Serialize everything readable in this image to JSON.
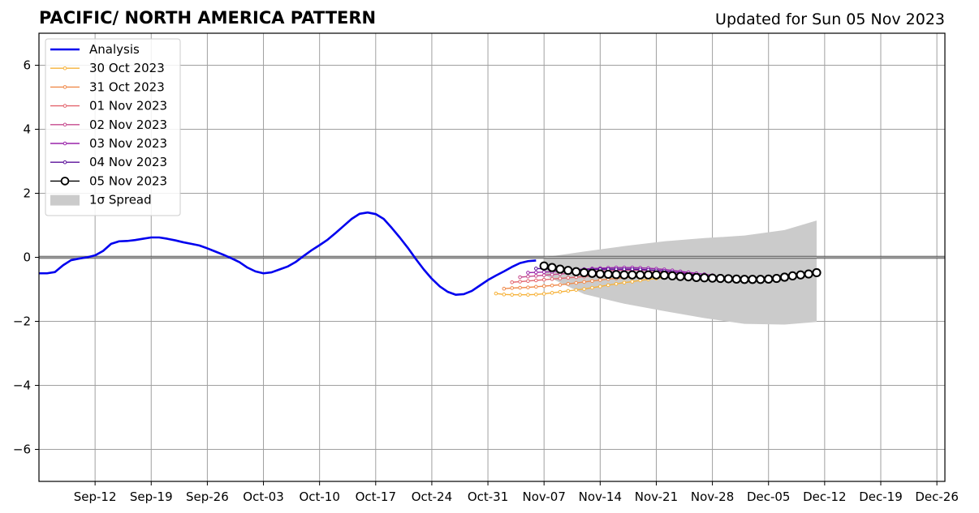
{
  "chart_data": {
    "type": "line",
    "title": "PACIFIC/ NORTH AMERICA PATTERN",
    "subtitle": "Updated for Sun 05 Nov 2023",
    "xlabel": "",
    "ylabel": "",
    "xlim": [
      "2023-09-04",
      "2023-12-26"
    ],
    "ylim": [
      -7,
      7
    ],
    "grid": true,
    "zero_line": true,
    "legend_position": "upper-left",
    "x_tick_labels": [
      "Sep-12",
      "Sep-19",
      "Sep-26",
      "Oct-03",
      "Oct-10",
      "Oct-17",
      "Oct-24",
      "Oct-31",
      "Nov-07",
      "Nov-14",
      "Nov-21",
      "Nov-28",
      "Dec-05",
      "Dec-12",
      "Dec-19",
      "Dec-26"
    ],
    "y_tick_labels": [
      "6",
      "4",
      "2",
      "0",
      "−2",
      "−4",
      "−6"
    ],
    "series": [
      {
        "name": "Analysis",
        "color": "#0000ee",
        "style": "thick-line",
        "x": [
          "2023-09-04",
          "2023-09-05",
          "2023-09-06",
          "2023-09-07",
          "2023-09-08",
          "2023-09-09",
          "2023-09-10",
          "2023-09-11",
          "2023-09-12",
          "2023-09-13",
          "2023-09-14",
          "2023-09-15",
          "2023-09-16",
          "2023-09-17",
          "2023-09-18",
          "2023-09-19",
          "2023-09-20",
          "2023-09-21",
          "2023-09-22",
          "2023-09-23",
          "2023-09-24",
          "2023-09-25",
          "2023-09-26",
          "2023-09-27",
          "2023-09-28",
          "2023-09-29",
          "2023-09-30",
          "2023-10-01",
          "2023-10-02",
          "2023-10-03",
          "2023-10-04",
          "2023-10-05",
          "2023-10-06",
          "2023-10-07",
          "2023-10-08",
          "2023-10-09",
          "2023-10-10",
          "2023-10-11",
          "2023-10-12",
          "2023-10-13",
          "2023-10-14",
          "2023-10-15",
          "2023-10-16",
          "2023-10-17",
          "2023-10-18",
          "2023-10-19",
          "2023-10-20",
          "2023-10-21",
          "2023-10-22",
          "2023-10-23",
          "2023-10-24",
          "2023-10-25",
          "2023-10-26",
          "2023-10-27",
          "2023-10-28",
          "2023-10-29",
          "2023-10-30",
          "2023-10-31",
          "2023-11-01",
          "2023-11-02",
          "2023-11-03",
          "2023-11-04",
          "2023-11-05"
        ],
        "values": [
          -0.5,
          -0.5,
          -0.46,
          -0.25,
          -0.09,
          -0.04,
          0.0,
          0.06,
          0.2,
          0.42,
          0.5,
          0.51,
          0.54,
          0.58,
          0.62,
          0.62,
          0.58,
          0.53,
          0.47,
          0.42,
          0.37,
          0.28,
          0.18,
          0.08,
          -0.03,
          -0.15,
          -0.32,
          -0.44,
          -0.5,
          -0.47,
          -0.38,
          -0.29,
          -0.15,
          0.04,
          0.22,
          0.38,
          0.55,
          0.76,
          0.98,
          1.2,
          1.36,
          1.4,
          1.35,
          1.2,
          0.92,
          0.62,
          0.3,
          -0.05,
          -0.38,
          -0.67,
          -0.91,
          -1.08,
          -1.17,
          -1.15,
          -1.05,
          -0.88,
          -0.71,
          -0.57,
          -0.44,
          -0.3,
          -0.18,
          -0.12,
          -0.1
        ]
      },
      {
        "name": "30 Oct 2023",
        "color": "#f6b23a",
        "style": "small-markers",
        "x": [
          "2023-10-31",
          "2023-11-01",
          "2023-11-02",
          "2023-11-03",
          "2023-11-04",
          "2023-11-05",
          "2023-11-06",
          "2023-11-07",
          "2023-11-08",
          "2023-11-09",
          "2023-11-10",
          "2023-11-11",
          "2023-11-12",
          "2023-11-13",
          "2023-11-14",
          "2023-11-15",
          "2023-11-16",
          "2023-11-17",
          "2023-11-18",
          "2023-11-19",
          "2023-11-20",
          "2023-11-21"
        ],
        "values": [
          -1.13,
          -1.16,
          -1.17,
          -1.17,
          -1.17,
          -1.16,
          -1.14,
          -1.11,
          -1.08,
          -1.05,
          -1.02,
          -0.99,
          -0.95,
          -0.91,
          -0.87,
          -0.83,
          -0.79,
          -0.76,
          -0.72,
          -0.69,
          -0.66,
          -0.63
        ]
      },
      {
        "name": "31 Oct 2023",
        "color": "#f08a4b",
        "style": "small-markers",
        "x": [
          "2023-11-01",
          "2023-11-02",
          "2023-11-03",
          "2023-11-04",
          "2023-11-05",
          "2023-11-06",
          "2023-11-07",
          "2023-11-08",
          "2023-11-09",
          "2023-11-10",
          "2023-11-11",
          "2023-11-12",
          "2023-11-13",
          "2023-11-14",
          "2023-11-15",
          "2023-11-16",
          "2023-11-17",
          "2023-11-18",
          "2023-11-19",
          "2023-11-20",
          "2023-11-21",
          "2023-11-22"
        ],
        "values": [
          -0.98,
          -0.96,
          -0.95,
          -0.94,
          -0.92,
          -0.9,
          -0.88,
          -0.86,
          -0.83,
          -0.8,
          -0.77,
          -0.74,
          -0.71,
          -0.68,
          -0.66,
          -0.64,
          -0.62,
          -0.6,
          -0.58,
          -0.57,
          -0.56,
          -0.55
        ]
      },
      {
        "name": "01 Nov 2023",
        "color": "#e3656e",
        "style": "small-markers",
        "x": [
          "2023-11-02",
          "2023-11-03",
          "2023-11-04",
          "2023-11-05",
          "2023-11-06",
          "2023-11-07",
          "2023-11-08",
          "2023-11-09",
          "2023-11-10",
          "2023-11-11",
          "2023-11-12",
          "2023-11-13",
          "2023-11-14",
          "2023-11-15",
          "2023-11-16",
          "2023-11-17",
          "2023-11-18",
          "2023-11-19",
          "2023-11-20",
          "2023-11-21",
          "2023-11-22",
          "2023-11-23"
        ],
        "values": [
          -0.78,
          -0.76,
          -0.74,
          -0.72,
          -0.7,
          -0.68,
          -0.66,
          -0.64,
          -0.62,
          -0.6,
          -0.58,
          -0.56,
          -0.54,
          -0.52,
          -0.5,
          -0.49,
          -0.48,
          -0.47,
          -0.47,
          -0.47,
          -0.48,
          -0.49
        ]
      },
      {
        "name": "02 Nov 2023",
        "color": "#c64a8e",
        "style": "small-markers",
        "x": [
          "2023-11-03",
          "2023-11-04",
          "2023-11-05",
          "2023-11-06",
          "2023-11-07",
          "2023-11-08",
          "2023-11-09",
          "2023-11-10",
          "2023-11-11",
          "2023-11-12",
          "2023-11-13",
          "2023-11-14",
          "2023-11-15",
          "2023-11-16",
          "2023-11-17",
          "2023-11-18",
          "2023-11-19",
          "2023-11-20",
          "2023-11-21",
          "2023-11-22",
          "2023-11-23",
          "2023-11-24",
          "2023-11-25"
        ],
        "values": [
          -0.62,
          -0.6,
          -0.58,
          -0.56,
          -0.54,
          -0.52,
          -0.5,
          -0.48,
          -0.46,
          -0.44,
          -0.43,
          -0.42,
          -0.41,
          -0.4,
          -0.4,
          -0.4,
          -0.41,
          -0.42,
          -0.44,
          -0.46,
          -0.48,
          -0.5,
          -0.53
        ]
      },
      {
        "name": "03 Nov 2023",
        "color": "#9a24aa",
        "style": "small-markers",
        "x": [
          "2023-11-04",
          "2023-11-05",
          "2023-11-06",
          "2023-11-07",
          "2023-11-08",
          "2023-11-09",
          "2023-11-10",
          "2023-11-11",
          "2023-11-12",
          "2023-11-13",
          "2023-11-14",
          "2023-11-15",
          "2023-11-16",
          "2023-11-17",
          "2023-11-18",
          "2023-11-19",
          "2023-11-20",
          "2023-11-21",
          "2023-11-22",
          "2023-11-23",
          "2023-11-24",
          "2023-11-25",
          "2023-11-26",
          "2023-11-27"
        ],
        "values": [
          -0.48,
          -0.47,
          -0.46,
          -0.45,
          -0.43,
          -0.41,
          -0.39,
          -0.37,
          -0.35,
          -0.34,
          -0.33,
          -0.32,
          -0.32,
          -0.32,
          -0.33,
          -0.34,
          -0.36,
          -0.38,
          -0.41,
          -0.44,
          -0.47,
          -0.5,
          -0.53,
          -0.56
        ]
      },
      {
        "name": "04 Nov 2023",
        "color": "#5a0f99",
        "style": "small-markers",
        "x": [
          "2023-11-05",
          "2023-11-06",
          "2023-11-07",
          "2023-11-08",
          "2023-11-09",
          "2023-11-10",
          "2023-11-11",
          "2023-11-12",
          "2023-11-13",
          "2023-11-14",
          "2023-11-15",
          "2023-11-16",
          "2023-11-17",
          "2023-11-18",
          "2023-11-19",
          "2023-11-20",
          "2023-11-21",
          "2023-11-22",
          "2023-11-23",
          "2023-11-24",
          "2023-11-25",
          "2023-11-26",
          "2023-11-27",
          "2023-11-28"
        ],
        "values": [
          -0.35,
          -0.36,
          -0.37,
          -0.38,
          -0.38,
          -0.38,
          -0.38,
          -0.38,
          -0.37,
          -0.37,
          -0.37,
          -0.37,
          -0.37,
          -0.38,
          -0.39,
          -0.41,
          -0.43,
          -0.46,
          -0.49,
          -0.52,
          -0.55,
          -0.58,
          -0.6,
          -0.62
        ]
      },
      {
        "name": "05 Nov 2023",
        "color": "#000000",
        "style": "large-open-markers",
        "x": [
          "2023-11-06",
          "2023-11-07",
          "2023-11-08",
          "2023-11-09",
          "2023-11-10",
          "2023-11-11",
          "2023-11-12",
          "2023-11-13",
          "2023-11-14",
          "2023-11-15",
          "2023-11-16",
          "2023-11-17",
          "2023-11-18",
          "2023-11-19",
          "2023-11-20",
          "2023-11-21",
          "2023-11-22",
          "2023-11-23",
          "2023-11-24",
          "2023-11-25",
          "2023-11-26",
          "2023-11-27",
          "2023-11-28",
          "2023-11-29",
          "2023-11-30",
          "2023-12-01",
          "2023-12-02",
          "2023-12-03",
          "2023-12-04",
          "2023-12-05",
          "2023-12-06",
          "2023-12-07",
          "2023-12-08",
          "2023-12-09",
          "2023-12-10"
        ],
        "values": [
          -0.27,
          -0.32,
          -0.37,
          -0.41,
          -0.45,
          -0.48,
          -0.5,
          -0.52,
          -0.53,
          -0.54,
          -0.55,
          -0.55,
          -0.55,
          -0.55,
          -0.55,
          -0.56,
          -0.58,
          -0.6,
          -0.61,
          -0.63,
          -0.64,
          -0.65,
          -0.66,
          -0.67,
          -0.68,
          -0.69,
          -0.69,
          -0.69,
          -0.68,
          -0.66,
          -0.62,
          -0.58,
          -0.55,
          -0.52,
          -0.48
        ]
      }
    ],
    "spread": {
      "name": "1σ Spread",
      "color": "#cbcbcb",
      "x": [
        "2023-11-06",
        "2023-11-11",
        "2023-11-16",
        "2023-11-21",
        "2023-11-26",
        "2023-12-01",
        "2023-12-06",
        "2023-12-10"
      ],
      "upper": [
        0.0,
        0.18,
        0.35,
        0.5,
        0.6,
        0.68,
        0.85,
        1.15
      ],
      "lower": [
        -0.55,
        -1.15,
        -1.45,
        -1.68,
        -1.9,
        -2.08,
        -2.1,
        -2.02
      ]
    }
  }
}
